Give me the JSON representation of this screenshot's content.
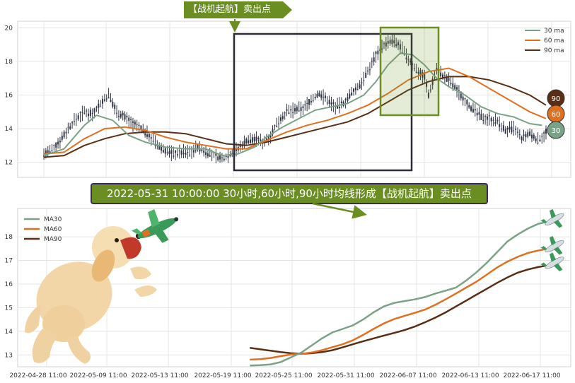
{
  "annotation": {
    "signal_tag": "【战机起航】卖出点",
    "banner": "2022-05-31 10:00:00 30小时,60小时,90小时均线形成【战机起航】卖出点"
  },
  "chart_data": [
    {
      "type": "candlestick+line",
      "ylim": [
        11.1,
        20.4
      ],
      "yticks": [
        "12",
        "14",
        "16",
        "18",
        "20"
      ],
      "grid": true,
      "legend_position": "top-right",
      "series": [
        {
          "name": "30 ma",
          "color": "#7aa287"
        },
        {
          "name": "60 ma",
          "color": "#e07020"
        },
        {
          "name": "90 ma",
          "color": "#5a2e14"
        }
      ],
      "end_badges": [
        {
          "label": "90",
          "color": "#5a2e14"
        },
        {
          "label": "60",
          "color": "#e07020"
        },
        {
          "label": "30",
          "color": "#7aa287"
        }
      ],
      "price_path": [
        [
          0,
          12.5
        ],
        [
          4,
          12.7
        ],
        [
          8,
          13.3
        ],
        [
          12,
          14.0
        ],
        [
          16,
          14.6
        ],
        [
          20,
          15.0
        ],
        [
          24,
          14.9
        ],
        [
          28,
          15.5
        ],
        [
          32,
          16.0
        ],
        [
          36,
          15.0
        ],
        [
          40,
          14.7
        ],
        [
          44,
          14.3
        ],
        [
          48,
          14.0
        ],
        [
          52,
          13.6
        ],
        [
          56,
          13.0
        ],
        [
          60,
          12.7
        ],
        [
          64,
          12.5
        ],
        [
          68,
          12.6
        ],
        [
          72,
          12.6
        ],
        [
          76,
          12.9
        ],
        [
          80,
          12.6
        ],
        [
          84,
          12.4
        ],
        [
          88,
          12.2
        ],
        [
          92,
          12.5
        ],
        [
          96,
          12.8
        ],
        [
          100,
          13.3
        ],
        [
          104,
          13.4
        ],
        [
          108,
          13.2
        ],
        [
          112,
          13.6
        ],
        [
          116,
          14.5
        ],
        [
          120,
          15.0
        ],
        [
          124,
          15.1
        ],
        [
          128,
          15.2
        ],
        [
          132,
          15.7
        ],
        [
          136,
          16.1
        ],
        [
          140,
          15.7
        ],
        [
          144,
          15.3
        ],
        [
          148,
          15.5
        ],
        [
          152,
          16.1
        ],
        [
          156,
          16.6
        ],
        [
          160,
          17.4
        ],
        [
          164,
          18.4
        ],
        [
          168,
          19.0
        ],
        [
          172,
          19.2
        ],
        [
          176,
          18.9
        ],
        [
          180,
          18.1
        ],
        [
          184,
          17.5
        ],
        [
          188,
          17.1
        ],
        [
          190,
          16.0
        ],
        [
          194,
          17.6
        ],
        [
          198,
          17.0
        ],
        [
          200,
          16.9
        ],
        [
          204,
          16.3
        ],
        [
          208,
          15.7
        ],
        [
          212,
          15.1
        ],
        [
          216,
          14.7
        ],
        [
          220,
          14.6
        ],
        [
          224,
          14.4
        ],
        [
          228,
          13.9
        ],
        [
          232,
          14.0
        ],
        [
          236,
          13.4
        ],
        [
          240,
          13.7
        ],
        [
          244,
          13.3
        ],
        [
          248,
          13.8
        ]
      ],
      "ma30": [
        [
          0,
          12.4
        ],
        [
          10,
          12.8
        ],
        [
          20,
          14.2
        ],
        [
          26,
          14.8
        ],
        [
          34,
          14.5
        ],
        [
          42,
          13.6
        ],
        [
          50,
          13.2
        ],
        [
          60,
          12.9
        ],
        [
          70,
          12.8
        ],
        [
          80,
          12.8
        ],
        [
          88,
          12.4
        ],
        [
          96,
          12.5
        ],
        [
          104,
          12.9
        ],
        [
          110,
          13.5
        ],
        [
          118,
          14.1
        ],
        [
          126,
          14.6
        ],
        [
          134,
          15.1
        ],
        [
          142,
          15.3
        ],
        [
          150,
          15.5
        ],
        [
          158,
          16.0
        ],
        [
          164,
          16.8
        ],
        [
          170,
          17.8
        ],
        [
          176,
          18.5
        ],
        [
          182,
          18.4
        ],
        [
          188,
          17.8
        ],
        [
          194,
          17.0
        ],
        [
          200,
          16.5
        ],
        [
          208,
          16.0
        ],
        [
          216,
          15.3
        ],
        [
          224,
          14.9
        ],
        [
          232,
          14.7
        ],
        [
          240,
          14.3
        ],
        [
          246,
          14.2
        ]
      ],
      "ma60": [
        [
          0,
          12.5
        ],
        [
          10,
          12.6
        ],
        [
          20,
          13.4
        ],
        [
          30,
          14.0
        ],
        [
          40,
          14.1
        ],
        [
          50,
          13.9
        ],
        [
          60,
          13.5
        ],
        [
          70,
          13.2
        ],
        [
          80,
          13.0
        ],
        [
          90,
          12.8
        ],
        [
          100,
          12.8
        ],
        [
          110,
          13.3
        ],
        [
          120,
          13.8
        ],
        [
          130,
          14.2
        ],
        [
          140,
          14.5
        ],
        [
          150,
          14.9
        ],
        [
          160,
          15.4
        ],
        [
          170,
          16.1
        ],
        [
          180,
          16.9
        ],
        [
          190,
          17.4
        ],
        [
          200,
          17.6
        ],
        [
          210,
          17.1
        ],
        [
          220,
          16.4
        ],
        [
          230,
          15.7
        ],
        [
          240,
          15.0
        ],
        [
          248,
          14.6
        ]
      ],
      "ma90": [
        [
          0,
          12.3
        ],
        [
          10,
          12.4
        ],
        [
          20,
          13.0
        ],
        [
          30,
          13.4
        ],
        [
          40,
          13.7
        ],
        [
          50,
          13.8
        ],
        [
          60,
          13.8
        ],
        [
          70,
          13.7
        ],
        [
          80,
          13.4
        ],
        [
          90,
          13.1
        ],
        [
          100,
          13.0
        ],
        [
          110,
          13.2
        ],
        [
          120,
          13.5
        ],
        [
          130,
          13.8
        ],
        [
          140,
          14.1
        ],
        [
          150,
          14.4
        ],
        [
          160,
          14.9
        ],
        [
          170,
          15.6
        ],
        [
          180,
          16.3
        ],
        [
          190,
          16.8
        ],
        [
          200,
          17.1
        ],
        [
          210,
          17.1
        ],
        [
          220,
          16.9
        ],
        [
          230,
          16.5
        ],
        [
          240,
          16.0
        ],
        [
          248,
          15.4
        ]
      ]
    },
    {
      "type": "line",
      "ylim": [
        12.5,
        19.2
      ],
      "yticks": [
        "13",
        "14",
        "15",
        "16",
        "17",
        "18"
      ],
      "xtick_labels": [
        "2022-04-28 11:00",
        "2022-05-09 11:00",
        "2022-05-13 11:00",
        "2022-05-19 11:00",
        "2022-05-25 11:00",
        "2022-05-31 11:00",
        "2022-06-07 11:00",
        "2022-06-13 11:00",
        "2022-06-17 11:00"
      ],
      "grid": true,
      "legend_position": "top-left",
      "series": [
        {
          "name": "MA30",
          "color": "#7aa287",
          "values": [
            [
              80,
              12.55
            ],
            [
              84,
              12.57
            ],
            [
              88,
              12.6
            ],
            [
              92,
              12.7
            ],
            [
              96,
              12.9
            ],
            [
              100,
              13.1
            ],
            [
              104,
              13.4
            ],
            [
              108,
              13.7
            ],
            [
              112,
              13.95
            ],
            [
              116,
              14.1
            ],
            [
              120,
              14.25
            ],
            [
              124,
              14.5
            ],
            [
              128,
              14.8
            ],
            [
              132,
              15.05
            ],
            [
              136,
              15.2
            ],
            [
              140,
              15.28
            ],
            [
              144,
              15.35
            ],
            [
              148,
              15.45
            ],
            [
              152,
              15.6
            ],
            [
              156,
              15.72
            ],
            [
              160,
              15.85
            ],
            [
              164,
              16.15
            ],
            [
              168,
              16.5
            ],
            [
              172,
              16.9
            ],
            [
              176,
              17.35
            ],
            [
              180,
              17.8
            ],
            [
              184,
              18.1
            ],
            [
              188,
              18.35
            ],
            [
              192,
              18.55
            ],
            [
              195,
              18.62
            ]
          ]
        },
        {
          "name": "MA60",
          "color": "#e07020",
          "values": [
            [
              80,
              12.8
            ],
            [
              84,
              12.82
            ],
            [
              88,
              12.87
            ],
            [
              92,
              12.95
            ],
            [
              96,
              13.02
            ],
            [
              100,
              13.05
            ],
            [
              104,
              13.1
            ],
            [
              108,
              13.2
            ],
            [
              112,
              13.33
            ],
            [
              116,
              13.45
            ],
            [
              120,
              13.62
            ],
            [
              124,
              13.85
            ],
            [
              128,
              14.1
            ],
            [
              132,
              14.33
            ],
            [
              136,
              14.52
            ],
            [
              140,
              14.65
            ],
            [
              144,
              14.78
            ],
            [
              148,
              14.92
            ],
            [
              152,
              15.12
            ],
            [
              156,
              15.35
            ],
            [
              160,
              15.6
            ],
            [
              164,
              15.85
            ],
            [
              168,
              16.1
            ],
            [
              172,
              16.4
            ],
            [
              176,
              16.7
            ],
            [
              180,
              16.95
            ],
            [
              184,
              17.15
            ],
            [
              188,
              17.32
            ],
            [
              192,
              17.42
            ],
            [
              195,
              17.48
            ]
          ]
        },
        {
          "name": "MA90",
          "color": "#5a2e14",
          "values": [
            [
              80,
              13.3
            ],
            [
              84,
              13.24
            ],
            [
              88,
              13.18
            ],
            [
              92,
              13.12
            ],
            [
              96,
              13.07
            ],
            [
              100,
              13.05
            ],
            [
              104,
              13.07
            ],
            [
              108,
              13.12
            ],
            [
              112,
              13.2
            ],
            [
              116,
              13.32
            ],
            [
              120,
              13.45
            ],
            [
              124,
              13.58
            ],
            [
              128,
              13.7
            ],
            [
              132,
              13.82
            ],
            [
              136,
              13.93
            ],
            [
              140,
              14.05
            ],
            [
              144,
              14.2
            ],
            [
              148,
              14.38
            ],
            [
              152,
              14.58
            ],
            [
              156,
              14.8
            ],
            [
              160,
              15.05
            ],
            [
              164,
              15.3
            ],
            [
              168,
              15.55
            ],
            [
              172,
              15.8
            ],
            [
              176,
              16.05
            ],
            [
              180,
              16.28
            ],
            [
              184,
              16.48
            ],
            [
              188,
              16.62
            ],
            [
              192,
              16.72
            ],
            [
              195,
              16.78
            ]
          ]
        }
      ]
    }
  ]
}
